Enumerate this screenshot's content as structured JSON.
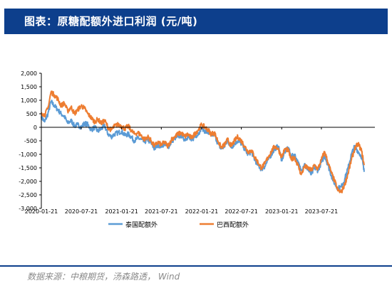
{
  "header": {
    "title": "图表：原糖配额外进口利润 (元/吨)"
  },
  "source": "数据来源：中粮期货，汤森路透， Wind",
  "colors": {
    "header_bg": "#0d3f8c",
    "thailand": "#5b9bd5",
    "brazil": "#ed7d31",
    "axis": "#000000"
  },
  "chart_data": {
    "type": "line",
    "title": "原糖配额外进口利润 (元/吨)",
    "xlabel": "",
    "ylabel": "",
    "ylim": [
      -3000,
      2000
    ],
    "yticks": [
      2000,
      1500,
      1000,
      500,
      0,
      -500,
      -1000,
      -1500,
      -2000,
      -2500,
      -3000
    ],
    "ytick_labels": [
      "2,000",
      "1,500",
      "1,000",
      "500",
      "0",
      "-500",
      "-1,000",
      "-1,500",
      "-2,000",
      "-2,500",
      "-3,000"
    ],
    "xlim": [
      "2020-01-21",
      "2024-03-21"
    ],
    "xtick_labels": [
      "2020-01-21",
      "2020-07-21",
      "2021-01-21",
      "2021-07-21",
      "2022-01-21",
      "2022-07-21",
      "2023-01-21",
      "2023-07-21"
    ],
    "grid": false,
    "legend_position": "bottom",
    "series": [
      {
        "name": "泰国配额外",
        "color": "#5b9bd5",
        "points": [
          [
            "2020-01-21",
            400
          ],
          [
            "2020-02-05",
            200
          ],
          [
            "2020-02-20",
            500
          ],
          [
            "2020-03-05",
            950
          ],
          [
            "2020-03-20",
            800
          ],
          [
            "2020-04-05",
            650
          ],
          [
            "2020-04-20",
            500
          ],
          [
            "2020-05-05",
            400
          ],
          [
            "2020-05-20",
            150
          ],
          [
            "2020-06-05",
            250
          ],
          [
            "2020-06-20",
            50
          ],
          [
            "2020-07-05",
            100
          ],
          [
            "2020-07-21",
            0
          ],
          [
            "2020-08-05",
            150
          ],
          [
            "2020-08-20",
            100
          ],
          [
            "2020-09-05",
            -100
          ],
          [
            "2020-09-20",
            0
          ],
          [
            "2020-10-05",
            -150
          ],
          [
            "2020-10-20",
            -50
          ],
          [
            "2020-11-05",
            50
          ],
          [
            "2020-11-20",
            -250
          ],
          [
            "2020-12-05",
            -350
          ],
          [
            "2020-12-20",
            -250
          ],
          [
            "2021-01-05",
            -200
          ],
          [
            "2021-01-21",
            -150
          ],
          [
            "2021-02-05",
            -300
          ],
          [
            "2021-02-20",
            -250
          ],
          [
            "2021-03-05",
            -350
          ],
          [
            "2021-03-20",
            -500
          ],
          [
            "2021-04-05",
            -400
          ],
          [
            "2021-04-20",
            -450
          ],
          [
            "2021-05-05",
            -550
          ],
          [
            "2021-05-20",
            -450
          ],
          [
            "2021-06-05",
            -600
          ],
          [
            "2021-06-20",
            -800
          ],
          [
            "2021-07-05",
            -650
          ],
          [
            "2021-07-21",
            -700
          ],
          [
            "2021-08-05",
            -600
          ],
          [
            "2021-08-20",
            -750
          ],
          [
            "2021-09-05",
            -550
          ],
          [
            "2021-09-20",
            -400
          ],
          [
            "2021-10-05",
            -350
          ],
          [
            "2021-10-20",
            -300
          ],
          [
            "2021-11-05",
            -450
          ],
          [
            "2021-11-20",
            -350
          ],
          [
            "2021-12-05",
            -500
          ],
          [
            "2021-12-20",
            -350
          ],
          [
            "2022-01-05",
            -250
          ],
          [
            "2022-01-21",
            0
          ],
          [
            "2022-02-05",
            -150
          ],
          [
            "2022-02-20",
            -200
          ],
          [
            "2022-03-05",
            -300
          ],
          [
            "2022-03-20",
            -250
          ],
          [
            "2022-04-05",
            -600
          ],
          [
            "2022-04-20",
            -800
          ],
          [
            "2022-05-05",
            -700
          ],
          [
            "2022-05-20",
            -500
          ],
          [
            "2022-06-05",
            -750
          ],
          [
            "2022-06-20",
            -600
          ],
          [
            "2022-07-05",
            -500
          ],
          [
            "2022-07-21",
            -600
          ],
          [
            "2022-08-05",
            -800
          ],
          [
            "2022-08-20",
            -1000
          ],
          [
            "2022-09-05",
            -900
          ],
          [
            "2022-09-20",
            -1200
          ],
          [
            "2022-10-05",
            -1400
          ],
          [
            "2022-10-20",
            -1550
          ],
          [
            "2022-11-05",
            -1450
          ],
          [
            "2022-11-20",
            -1200
          ],
          [
            "2022-12-05",
            -1000
          ],
          [
            "2022-12-20",
            -800
          ],
          [
            "2023-01-05",
            -700
          ],
          [
            "2023-01-21",
            -1200
          ],
          [
            "2023-02-05",
            -900
          ],
          [
            "2023-02-20",
            -750
          ],
          [
            "2023-03-05",
            -1100
          ],
          [
            "2023-03-20",
            -1000
          ],
          [
            "2023-04-05",
            -1300
          ],
          [
            "2023-04-20",
            -1600
          ],
          [
            "2023-05-05",
            -1350
          ],
          [
            "2023-05-20",
            -1550
          ],
          [
            "2023-06-05",
            -1750
          ],
          [
            "2023-06-20",
            -1500
          ],
          [
            "2023-07-05",
            -1600
          ],
          [
            "2023-07-21",
            -1300
          ],
          [
            "2023-08-05",
            -1050
          ],
          [
            "2023-08-20",
            -1400
          ],
          [
            "2023-09-05",
            -1800
          ],
          [
            "2023-09-20",
            -2100
          ],
          [
            "2023-10-05",
            -2250
          ],
          [
            "2023-10-20",
            -2200
          ],
          [
            "2023-11-05",
            -1900
          ],
          [
            "2023-11-20",
            -1500
          ],
          [
            "2023-12-05",
            -1000
          ],
          [
            "2023-12-20",
            -700
          ],
          [
            "2024-01-05",
            -900
          ],
          [
            "2024-01-21",
            -1100
          ],
          [
            "2024-02-01",
            -1650
          ]
        ]
      },
      {
        "name": "巴西配额外",
        "color": "#ed7d31",
        "points": [
          [
            "2020-01-21",
            550
          ],
          [
            "2020-02-05",
            450
          ],
          [
            "2020-02-20",
            700
          ],
          [
            "2020-03-05",
            1300
          ],
          [
            "2020-03-20",
            1200
          ],
          [
            "2020-04-05",
            1050
          ],
          [
            "2020-04-20",
            800
          ],
          [
            "2020-05-05",
            900
          ],
          [
            "2020-05-20",
            600
          ],
          [
            "2020-06-05",
            750
          ],
          [
            "2020-06-20",
            500
          ],
          [
            "2020-07-05",
            650
          ],
          [
            "2020-07-21",
            800
          ],
          [
            "2020-08-05",
            700
          ],
          [
            "2020-08-20",
            500
          ],
          [
            "2020-09-05",
            350
          ],
          [
            "2020-09-20",
            200
          ],
          [
            "2020-10-05",
            300
          ],
          [
            "2020-10-20",
            150
          ],
          [
            "2020-11-05",
            250
          ],
          [
            "2020-11-20",
            0
          ],
          [
            "2020-12-05",
            -100
          ],
          [
            "2020-12-20",
            50
          ],
          [
            "2021-01-05",
            100
          ],
          [
            "2021-01-21",
            50
          ],
          [
            "2021-02-05",
            -50
          ],
          [
            "2021-02-20",
            50
          ],
          [
            "2021-03-05",
            -100
          ],
          [
            "2021-03-20",
            -250
          ],
          [
            "2021-04-05",
            -200
          ],
          [
            "2021-04-20",
            -300
          ],
          [
            "2021-05-05",
            -450
          ],
          [
            "2021-05-20",
            -350
          ],
          [
            "2021-06-05",
            -500
          ],
          [
            "2021-06-20",
            -700
          ],
          [
            "2021-07-05",
            -550
          ],
          [
            "2021-07-21",
            -650
          ],
          [
            "2021-08-05",
            -550
          ],
          [
            "2021-08-20",
            -700
          ],
          [
            "2021-09-05",
            -450
          ],
          [
            "2021-09-20",
            -350
          ],
          [
            "2021-10-05",
            -250
          ],
          [
            "2021-10-20",
            -200
          ],
          [
            "2021-11-05",
            -350
          ],
          [
            "2021-11-20",
            -250
          ],
          [
            "2021-12-05",
            -400
          ],
          [
            "2021-12-20",
            -250
          ],
          [
            "2022-01-05",
            -100
          ],
          [
            "2022-01-21",
            100
          ],
          [
            "2022-02-05",
            0
          ],
          [
            "2022-02-20",
            -100
          ],
          [
            "2022-03-05",
            -250
          ],
          [
            "2022-03-20",
            -200
          ],
          [
            "2022-04-05",
            -500
          ],
          [
            "2022-04-20",
            -750
          ],
          [
            "2022-05-05",
            -650
          ],
          [
            "2022-05-20",
            -450
          ],
          [
            "2022-06-05",
            -700
          ],
          [
            "2022-06-20",
            -500
          ],
          [
            "2022-07-05",
            -350
          ],
          [
            "2022-07-21",
            -500
          ],
          [
            "2022-08-05",
            -700
          ],
          [
            "2022-08-20",
            -900
          ],
          [
            "2022-09-05",
            -850
          ],
          [
            "2022-09-20",
            -1100
          ],
          [
            "2022-10-05",
            -1300
          ],
          [
            "2022-10-20",
            -1500
          ],
          [
            "2022-11-05",
            -1350
          ],
          [
            "2022-11-20",
            -1100
          ],
          [
            "2022-12-05",
            -900
          ],
          [
            "2022-12-20",
            -700
          ],
          [
            "2023-01-05",
            -800
          ],
          [
            "2023-01-21",
            -1100
          ],
          [
            "2023-02-05",
            -800
          ],
          [
            "2023-02-20",
            -850
          ],
          [
            "2023-03-05",
            -1200
          ],
          [
            "2023-03-20",
            -1100
          ],
          [
            "2023-04-05",
            -1400
          ],
          [
            "2023-04-20",
            -1750
          ],
          [
            "2023-05-05",
            -1450
          ],
          [
            "2023-05-20",
            -1500
          ],
          [
            "2023-06-05",
            -1600
          ],
          [
            "2023-06-20",
            -1400
          ],
          [
            "2023-07-05",
            -1550
          ],
          [
            "2023-07-21",
            -1200
          ],
          [
            "2023-08-05",
            -900
          ],
          [
            "2023-08-20",
            -1300
          ],
          [
            "2023-09-05",
            -1700
          ],
          [
            "2023-09-20",
            -2000
          ],
          [
            "2023-10-05",
            -2350
          ],
          [
            "2023-10-20",
            -2400
          ],
          [
            "2023-11-05",
            -2100
          ],
          [
            "2023-11-20",
            -1700
          ],
          [
            "2023-12-05",
            -1200
          ],
          [
            "2023-12-20",
            -800
          ],
          [
            "2024-01-05",
            -600
          ],
          [
            "2024-01-21",
            -900
          ],
          [
            "2024-02-01",
            -1400
          ]
        ]
      }
    ]
  }
}
